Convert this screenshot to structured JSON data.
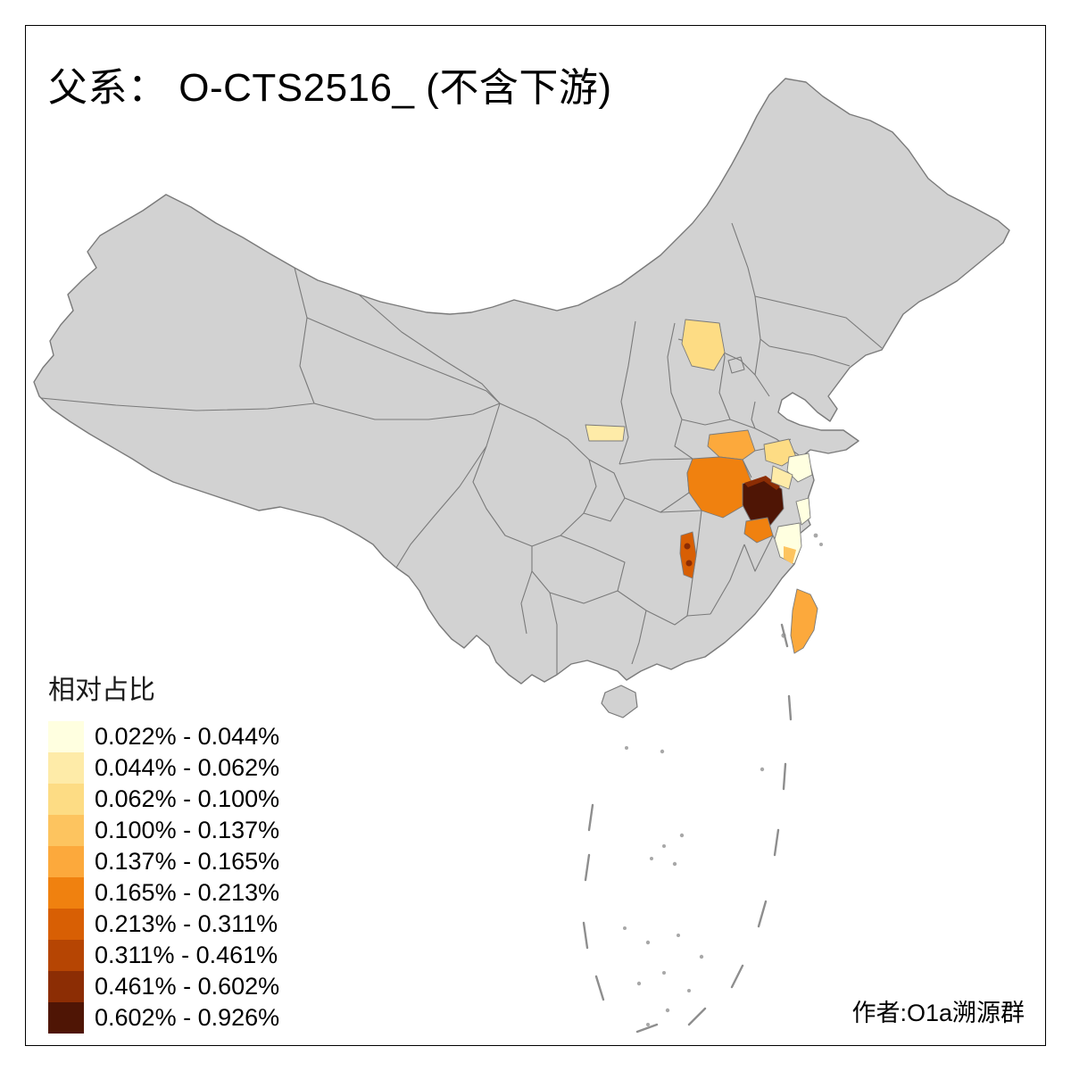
{
  "frame": {
    "title": "父系： O-CTS2516_ (不含下游)",
    "author": "作者:O1a溯源群"
  },
  "legend": {
    "title": "相对占比",
    "bins": [
      {
        "label": "0.022% - 0.044%",
        "color": "#FFFFE0"
      },
      {
        "label": "0.044% - 0.062%",
        "color": "#FEEBA8"
      },
      {
        "label": "0.062% - 0.100%",
        "color": "#FDDC84"
      },
      {
        "label": "0.100% - 0.137%",
        "color": "#FDC45F"
      },
      {
        "label": "0.137% - 0.165%",
        "color": "#FCA93C"
      },
      {
        "label": "0.165% - 0.213%",
        "color": "#F0810F"
      },
      {
        "label": "0.213% - 0.311%",
        "color": "#D85F04"
      },
      {
        "label": "0.311% - 0.461%",
        "color": "#B64503"
      },
      {
        "label": "0.461% - 0.602%",
        "color": "#8C2D04"
      },
      {
        "label": "0.602% - 0.926%",
        "color": "#4F1505"
      }
    ]
  },
  "map": {
    "base_fill": "#D2D2D2",
    "border_color": "#7A7A7A",
    "sea_fill": "#FFFFFF",
    "regions": [
      {
        "id": "shanxi",
        "bin": 3,
        "range": "0.062% - 0.100%"
      },
      {
        "id": "gansu-shaanxi",
        "bin": 2,
        "range": "0.044% - 0.062%"
      },
      {
        "id": "henan-south",
        "bin": 5,
        "range": "0.137% - 0.165%"
      },
      {
        "id": "hubei",
        "bin": 6,
        "range": "0.165% - 0.213%"
      },
      {
        "id": "anhui-main",
        "bin": 10,
        "range": "0.602% - 0.926%"
      },
      {
        "id": "anhui-north",
        "bin": 9,
        "range": "0.461% - 0.602%"
      },
      {
        "id": "jiangsu-inland",
        "bin": 3,
        "range": "0.062% - 0.100%"
      },
      {
        "id": "jiangsu-coast",
        "bin": 1,
        "range": "0.022% - 0.044%"
      },
      {
        "id": "jiangsu-south",
        "bin": 2,
        "range": "0.044% - 0.062%"
      },
      {
        "id": "shanghai",
        "bin": 1,
        "range": "0.022% - 0.044%"
      },
      {
        "id": "zhejiang",
        "bin": 1,
        "range": "0.022% - 0.044%"
      },
      {
        "id": "zhejiang-spot",
        "bin": 4,
        "range": "0.100% - 0.137%"
      },
      {
        "id": "jiangxi-north",
        "bin": 6,
        "range": "0.165% - 0.213%"
      },
      {
        "id": "jiangxi-strip",
        "bin": 7,
        "range": "0.213% - 0.311%"
      },
      {
        "id": "jiangxi-dots",
        "bin": 9,
        "range": "0.461% - 0.602%"
      },
      {
        "id": "taiwan",
        "bin": 5,
        "range": "0.137% - 0.165%"
      }
    ]
  }
}
